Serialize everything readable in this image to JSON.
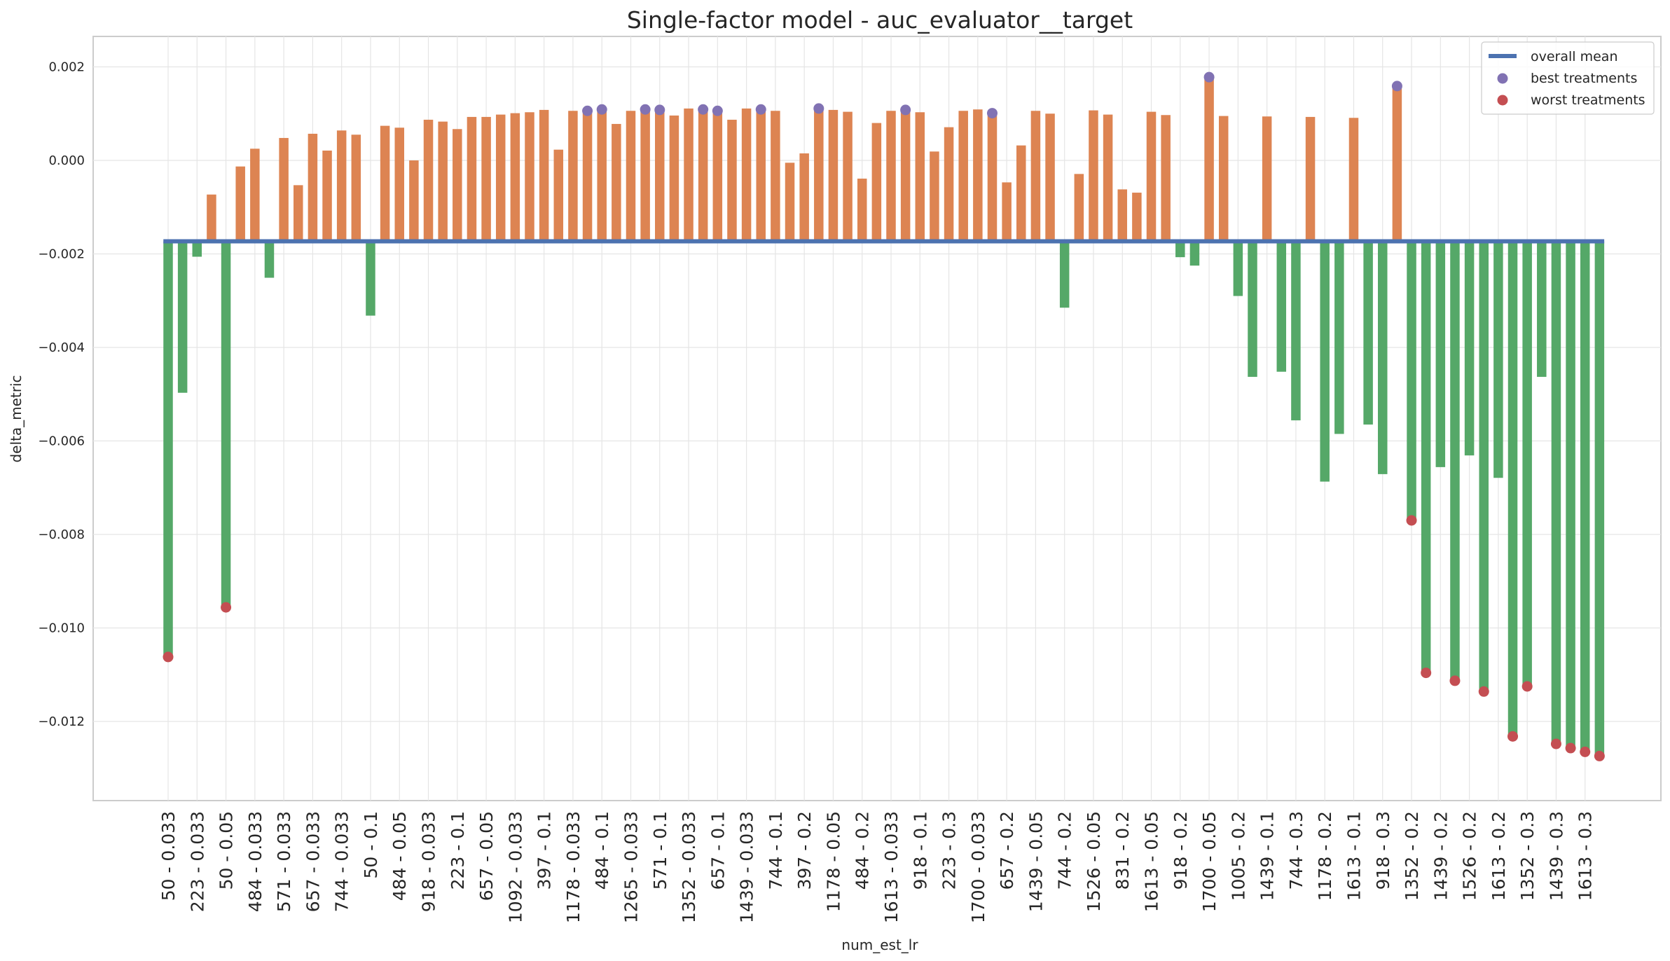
{
  "chart_data": {
    "type": "bar",
    "title": "Single-factor model - auc_evaluator__target",
    "xlabel": "num_est_lr",
    "ylabel": "delta_metric",
    "ylim": [
      -0.0136,
      0.0026
    ],
    "yticks": [
      0.002,
      0.0,
      -0.002,
      -0.004,
      -0.006,
      -0.008,
      -0.01,
      -0.012
    ],
    "ytick_labels": [
      "0.002",
      "0.000",
      "−0.002",
      "−0.004",
      "−0.006",
      "−0.008",
      "−0.010",
      "−0.012"
    ],
    "grid": true,
    "legend_position": "top-right",
    "baseline": -0.00173,
    "colors": {
      "above": "#dd8452",
      "below": "#55a868",
      "mean_line": "#4c72b0",
      "best": "#8172b3",
      "worst": "#c44e52",
      "grid": "#e5e5e5",
      "frame": "#cccccc"
    },
    "legend": [
      {
        "key": "line",
        "label": "overall mean"
      },
      {
        "key": "best",
        "label": "best treatments"
      },
      {
        "key": "worst",
        "label": "worst treatments"
      }
    ],
    "xtick_labels": [
      "50 - 0.033",
      "223 - 0.033",
      "50 - 0.05",
      "484 - 0.033",
      "571 - 0.033",
      "657 - 0.033",
      "744 - 0.033",
      "50 - 0.1",
      "484 - 0.05",
      "918 - 0.033",
      "223 - 0.1",
      "657 - 0.05",
      "1092 - 0.033",
      "397 - 0.1",
      "1178 - 0.033",
      "484 - 0.1",
      "1265 - 0.033",
      "571 - 0.1",
      "1352 - 0.033",
      "657 - 0.1",
      "1439 - 0.033",
      "744 - 0.1",
      "397 - 0.2",
      "1178 - 0.05",
      "484 - 0.2",
      "1613 - 0.033",
      "918 - 0.1",
      "223 - 0.3",
      "1700 - 0.033",
      "657 - 0.2",
      "1439 - 0.05",
      "744 - 0.2",
      "1526 - 0.05",
      "831 - 0.2",
      "1613 - 0.05",
      "918 - 0.2",
      "1700 - 0.05",
      "1005 - 0.2",
      "1439 - 0.1",
      "744 - 0.3",
      "1178 - 0.2",
      "1613 - 0.1",
      "918 - 0.3",
      "1352 - 0.2",
      "1439 - 0.2",
      "1526 - 0.2",
      "1613 - 0.2",
      "1352 - 0.3",
      "1439 - 0.3",
      "1613 - 0.3"
    ],
    "values": [
      -0.01062,
      -0.00497,
      -0.00206,
      -0.00073,
      -0.00956,
      -0.00013,
      0.00025,
      -0.00251,
      0.00048,
      -0.00053,
      0.00057,
      0.00021,
      0.00064,
      0.00055,
      -0.00332,
      0.00074,
      0.0007,
      0.0,
      0.00087,
      0.00083,
      0.00067,
      0.00093,
      0.00093,
      0.00098,
      0.00101,
      0.00103,
      0.00108,
      0.00023,
      0.00106,
      0.00106,
      0.00109,
      0.00078,
      0.00106,
      0.00109,
      0.00108,
      0.00096,
      0.00111,
      0.00109,
      0.00106,
      0.00087,
      0.00111,
      0.00109,
      0.00106,
      -5e-05,
      0.00015,
      0.00111,
      0.00108,
      0.00104,
      -0.00039,
      0.0008,
      0.00106,
      0.00108,
      0.00103,
      0.00019,
      0.00071,
      0.00106,
      0.00109,
      0.00101,
      -0.00047,
      0.00032,
      0.00106,
      0.001,
      -0.00315,
      -0.00029,
      0.00107,
      0.00098,
      -0.00062,
      -0.00069,
      0.00104,
      0.00097,
      -0.00207,
      -0.00225,
      0.00178,
      0.00095,
      -0.0029,
      -0.00463,
      0.00094,
      -0.00452,
      -0.00556,
      0.00093,
      -0.00687,
      -0.00585,
      0.00091,
      -0.00565,
      -0.00671,
      0.00159,
      -0.0077,
      -0.01096,
      -0.00656,
      -0.01113,
      -0.00631,
      -0.01136,
      -0.00679,
      -0.01232,
      -0.01125,
      -0.00463,
      -0.01248,
      -0.01257,
      -0.01265,
      -0.01274
    ],
    "best_indices": [
      29,
      30,
      33,
      34,
      37,
      38,
      41,
      45,
      51,
      57,
      72,
      85
    ],
    "worst_indices": [
      0,
      4,
      86,
      87,
      89,
      91,
      93,
      94,
      96,
      97,
      98,
      99
    ]
  }
}
